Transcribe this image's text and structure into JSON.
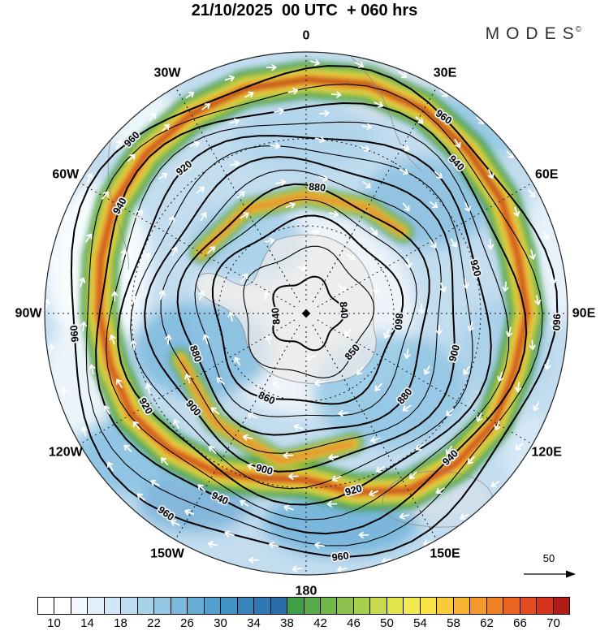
{
  "header": {
    "title": "21/10/2025  00 UTC  + 060 hrs",
    "brand": "MODES",
    "brand_mark": "©"
  },
  "map": {
    "longitude_labels": [
      {
        "text": "0",
        "angle": 0
      },
      {
        "text": "30E",
        "angle": 30
      },
      {
        "text": "60E",
        "angle": 60
      },
      {
        "text": "90E",
        "angle": 90
      },
      {
        "text": "120E",
        "angle": 120
      },
      {
        "text": "150E",
        "angle": 150
      },
      {
        "text": "180",
        "angle": 180
      },
      {
        "text": "150W",
        "angle": 210
      },
      {
        "text": "120W",
        "angle": 240
      },
      {
        "text": "90W",
        "angle": 270
      },
      {
        "text": "60W",
        "angle": 300
      },
      {
        "text": "30W",
        "angle": 330
      }
    ],
    "contours": [
      {
        "value": 840,
        "radius": 42,
        "bold": true,
        "label_angles": [
          85,
          265
        ]
      },
      {
        "value": 850,
        "radius": 78,
        "bold": false,
        "label_angles": [
          130
        ]
      },
      {
        "value": 860,
        "radius": 114,
        "bold": true,
        "label_angles": [
          95,
          205
        ]
      },
      {
        "value": 870,
        "radius": 133,
        "bold": false,
        "label_angles": []
      },
      {
        "value": 880,
        "radius": 152,
        "bold": true,
        "label_angles": [
          5,
          130,
          250
        ]
      },
      {
        "value": 890,
        "radius": 171,
        "bold": false,
        "label_angles": []
      },
      {
        "value": 900,
        "radius": 190,
        "bold": true,
        "label_angles": [
          105,
          195,
          230
        ]
      },
      {
        "value": 910,
        "radius": 208,
        "bold": false,
        "label_angles": []
      },
      {
        "value": 920,
        "radius": 226,
        "bold": true,
        "label_angles": [
          75,
          165,
          240,
          320
        ]
      },
      {
        "value": 930,
        "radius": 244,
        "bold": false,
        "label_angles": []
      },
      {
        "value": 940,
        "radius": 262,
        "bold": true,
        "label_angles": [
          45,
          135,
          205,
          300
        ]
      },
      {
        "value": 950,
        "radius": 280,
        "bold": false,
        "label_angles": []
      },
      {
        "value": 960,
        "radius": 298,
        "bold": true,
        "label_angles": [
          35,
          92,
          172,
          215,
          265,
          315
        ]
      }
    ],
    "wind_ref_label": "50"
  },
  "colorbar": {
    "ticks": [
      "10",
      "14",
      "18",
      "22",
      "26",
      "30",
      "34",
      "38",
      "42",
      "46",
      "50",
      "54",
      "58",
      "62",
      "66",
      "70"
    ],
    "colors": [
      "#ffffff",
      "#ffffff",
      "#f2f8fd",
      "#e1eff9",
      "#d0e7f5",
      "#bcdcf0",
      "#a8d2ea",
      "#93c7e3",
      "#7cbadd",
      "#68add5",
      "#539fcd",
      "#4392c5",
      "#3784bb",
      "#2f78b3",
      "#2a6da8",
      "#3f9f47",
      "#58ab48",
      "#71b74a",
      "#8cc24b",
      "#a8cf4c",
      "#c5da4d",
      "#e0e54e",
      "#f2ea4e",
      "#f9e245",
      "#f9cb3b",
      "#f7b232",
      "#f49a2c",
      "#f08126",
      "#ea6522",
      "#e34a1e",
      "#d8331c",
      "#b01c16"
    ]
  }
}
